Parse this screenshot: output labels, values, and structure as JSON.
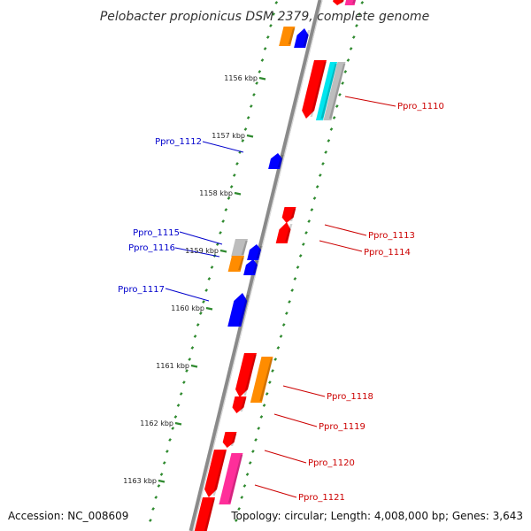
{
  "title": "Pelobacter propionicus DSM 2379, complete genome",
  "footer": {
    "accession": "Accession: NC_008609",
    "stats": "Topology: circular; Length: 4,008,000 bp; Genes: 3,643"
  },
  "colors": {
    "backbone": "#8a8a8a",
    "tick": "#2f8a2f",
    "label_forward": "#0000cc",
    "label_reverse": "#cc0000",
    "red": "#ff0000",
    "blue": "#0000ff",
    "orange": "#ff8c00",
    "cyan": "#00e5ee",
    "gray": "#bdbdbd",
    "magenta": "#ff2e9a"
  },
  "kbp_ticks": [
    "1156 kbp",
    "1157 kbp",
    "1158 kbp",
    "1159 kbp",
    "1160 kbp",
    "1161 kbp",
    "1162 kbp",
    "1163 kbp"
  ],
  "forward_labels": [
    "Ppro_1112",
    "Ppro_1115",
    "Ppro_1116",
    "Ppro_1117"
  ],
  "reverse_labels": [
    "Ppro_1110",
    "Ppro_1113",
    "Ppro_1114",
    "Ppro_1118",
    "Ppro_1119",
    "Ppro_1120",
    "Ppro_1121"
  ]
}
